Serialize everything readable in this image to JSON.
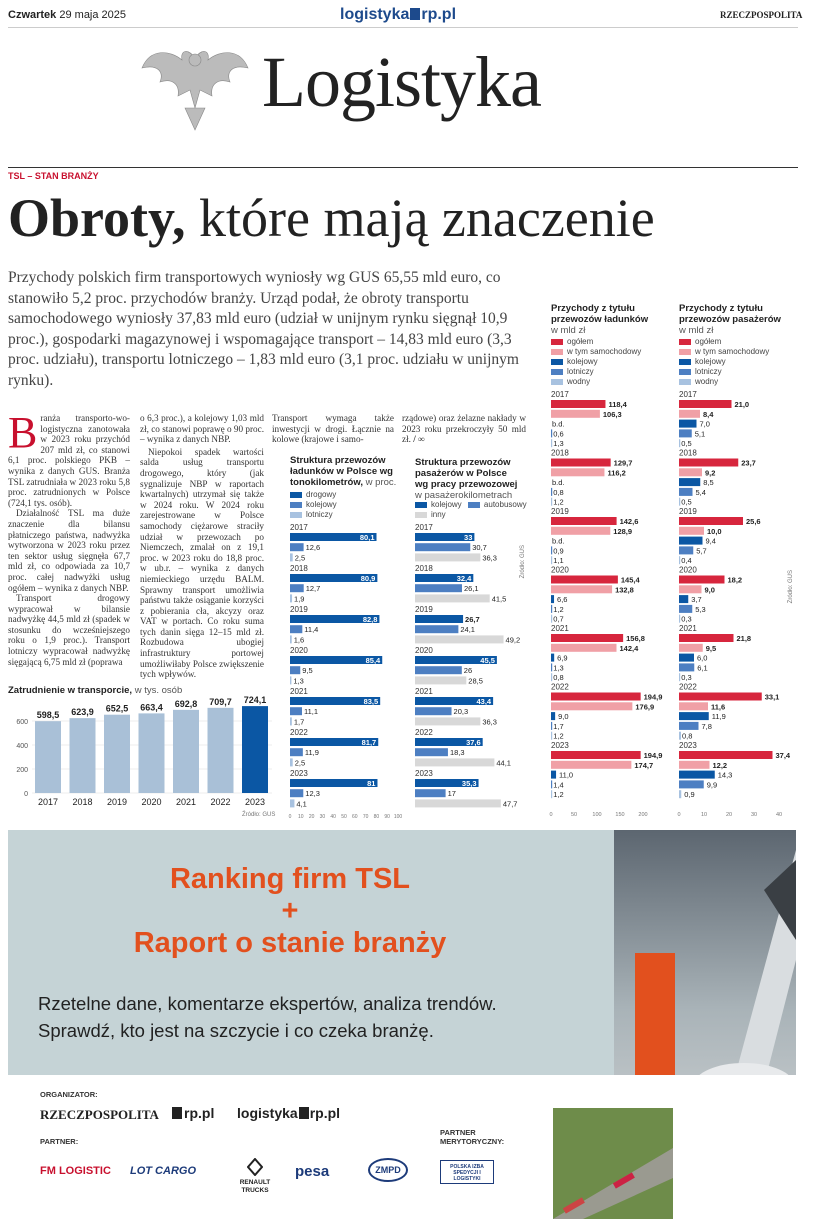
{
  "topbar": {
    "day": "Czwartek",
    "date": "29 maja 2025",
    "site": "logistyka",
    "site_rp": "rp.pl",
    "brand": "RZECZPOSPOLITA"
  },
  "masthead": "Logistyka",
  "section": "TSL – STAN BRANŻY",
  "headline": {
    "bold": "Obroty,",
    "rest": " które mają znaczenie"
  },
  "lead": "Przychody polskich firm transportowych wyniosły wg GUS 65,55 mld euro, co stanowiło 5,2 proc. przychodów branży. Urząd podał, że obroty transportu samochodowego wyniosły 37,83 mld euro (udział w unijnym rynku sięgnął 10,9 proc.), gospodarki magazynowej i wspomagające transport – 14,83 mld euro (3,3 proc. udziału), transportu lotniczego – 1,83 mld euro (3,1 proc. udziału w unijnym rynku).",
  "body": {
    "dropcap": "B",
    "col1": "ranża transporto-wo-logistyczna zanotowała w 2023 roku przychód 207 mld zł, co stanowi 6,1 proc. polskiego PKB – wynika z danych GUS. Branża TSL zatrudniała w 2023 roku 5,8 proc. zatrudnionych w Polsce (724,1 tys. osób).",
    "col1b": "Działalność TSL ma duże znaczenie dla bilansu płatniczego państwa, nadwyżka wytworzona w 2023 roku przez ten sektor usług sięgnęła 67,7 mld zł, co odpowiada za 10,7 proc. całej nadwyżki usług ogółem – wynika z danych NBP.",
    "col1c": "Transport drogowy wypracował w bilansie nadwyżkę 44,5 mld zł (spadek w stosunku do wcześniejszego roku o 1,9 proc.). Transport lotniczy wypracował nadwyżkę sięgającą 6,75 mld zł (poprawa",
    "col2": "o 6,3 proc.), a kolejowy 1,03 mld zł, co stanowi poprawę o 90 proc. – wynika z danych NBP.",
    "col2b": "Niepokoi spadek wartości salda usług transportu drogowego, który (jak sygnalizuje NBP w raportach kwartalnych) utrzymał się także w 2024 roku. W 2024 roku zarejestrowane w Polsce samochody ciężarowe straciły udział w przewozach po Niemczech, zmalał on z 19,1 proc. w 2023 roku do 18,8 proc. w ub.r. – wynika z danych niemieckiego urzędu BALM. Sprawny transport umożliwia państwu także osiąganie korzyści z pobierania cła, akcyzy oraz VAT w portach. Co roku suma tych danin sięga 12–15 mld zł. Rozbudowa ubogiej infrastruktury portowej umożliwiłaby Polsce zwiększenie tych wpływów.",
    "col3": "Transport wymaga także inwestycji w drogi. Łącznie na kolowe (krajowe i samo-",
    "col4": "rządowe) oraz żelazne nakłady w 2023 roku przekroczyły 50 mld zł.",
    "sign": "/ ∞"
  },
  "emp_chart": {
    "title": "Zatrudnienie w transporcie,",
    "unit": "w tys. osób",
    "source": "Źródło: GUS",
    "yticks": [
      "0",
      "200",
      "400",
      "600"
    ]
  },
  "freight_chart": {
    "title": "Struktura przewozów ładunków w Polsce wg tonokilometrów,",
    "unit": "w proc.",
    "legend": [
      "drogowy",
      "kolejowy",
      "lotniczy"
    ],
    "xticks": [
      "0",
      "10",
      "20",
      "30",
      "40",
      "50",
      "60",
      "70",
      "80",
      "90",
      "100"
    ]
  },
  "pass_chart": {
    "title": "Struktura przewozów pasażerów w Polsce wg pracy przewozowej",
    "unit": "w pasażerokilometrach",
    "legend": [
      "kolejowy",
      "autobusowy",
      "inny"
    ],
    "source": "Źródło: GUS"
  },
  "rev_freight_chart": {
    "title": "Przychody z tytułu przewozów ładunków",
    "unit": "w mld zł",
    "legend": [
      "ogółem",
      "w tym samochodowy",
      "kolejowy",
      "lotniczy",
      "wodny"
    ],
    "xticks": [
      "0",
      "50",
      "100",
      "150",
      "200"
    ],
    "source": "Źródło: GUS"
  },
  "rev_pass_chart": {
    "title": "Przychody z tytułu przewozów pasażerów",
    "unit": "w mld zł",
    "legend": [
      "ogółem",
      "w tym samochodowy",
      "kolejowy",
      "lotniczy",
      "wodny"
    ],
    "xticks": [
      "0",
      "10",
      "20",
      "30",
      "40"
    ]
  },
  "colors": {
    "red": "#d7263d",
    "pink": "#f0a0a6",
    "navy": "#0b57a4",
    "blue": "#4d7fc2",
    "light": "#a8c2e0",
    "grey": "#c8c8c8",
    "lightgrey": "#d8d8d8",
    "bar": "#a9c0d7",
    "bar_last": "#0b57a4"
  },
  "chart_data": [
    {
      "type": "bar",
      "title": "Zatrudnienie w transporcie",
      "ylabel": "w tys. osób",
      "categories": [
        "2017",
        "2018",
        "2019",
        "2020",
        "2021",
        "2022",
        "2023"
      ],
      "values": [
        598.5,
        623.9,
        652.5,
        663.4,
        692.8,
        709.7,
        724.1
      ],
      "value_labels": [
        "598,5",
        "623,9",
        "652,5",
        "663,4",
        "692,8",
        "709,7",
        "724,1"
      ],
      "ylim": [
        0,
        750
      ]
    },
    {
      "type": "bar",
      "orientation": "horizontal",
      "title": "Struktura przewozów ładunków w Polsce wg tonokilometrów",
      "unit": "w proc.",
      "categories": [
        "2017",
        "2018",
        "2019",
        "2020",
        "2021",
        "2022",
        "2023"
      ],
      "series": [
        {
          "name": "drogowy",
          "values": [
            80.1,
            80.9,
            82.8,
            85.4,
            83.5,
            81.7,
            81
          ],
          "labels": [
            "80,1",
            "80,9",
            "82,8",
            "85,4",
            "83,5",
            "81,7",
            "81"
          ]
        },
        {
          "name": "kolejowy",
          "values": [
            12.6,
            12.7,
            11.4,
            9.5,
            11.1,
            11.9,
            12.3
          ],
          "labels": [
            "12,6",
            "12,7",
            "11,4",
            "9,5",
            "11,1",
            "11,9",
            "12,3"
          ]
        },
        {
          "name": "lotniczy",
          "values": [
            2.5,
            1.9,
            1.6,
            1.3,
            1.7,
            2.5,
            4.1
          ],
          "labels": [
            "2,5",
            "1,9",
            "1,6",
            "1,3",
            "1,7",
            "2,5",
            "4,1"
          ]
        }
      ],
      "xlim": [
        0,
        100
      ]
    },
    {
      "type": "bar",
      "orientation": "horizontal",
      "title": "Struktura przewozów pasażerów w Polsce wg pracy przewozowej",
      "unit": "w pasażerokilometrach",
      "categories": [
        "2017",
        "2018",
        "2019",
        "2020",
        "2021",
        "2022",
        "2023"
      ],
      "series": [
        {
          "name": "kolejowy",
          "values": [
            33,
            32.4,
            26.7,
            45.5,
            43.4,
            37.6,
            35.3
          ],
          "labels": [
            "33",
            "32,4",
            "26,7",
            "45,5",
            "43,4",
            "37,6",
            "35,3"
          ]
        },
        {
          "name": "autobusowy",
          "values": [
            30.7,
            26.1,
            24.1,
            26,
            20.3,
            18.3,
            17
          ],
          "labels": [
            "30,7",
            "26,1",
            "24,1",
            "26",
            "20,3",
            "18,3",
            "17"
          ]
        },
        {
          "name": "inny",
          "values": [
            36.3,
            41.5,
            49.2,
            28.5,
            36.3,
            44.1,
            47.7
          ],
          "labels": [
            "36,3",
            "41,5",
            "49,2",
            "28,5",
            "36,3",
            "44,1",
            "47,7"
          ]
        }
      ],
      "xlim": [
        0,
        50
      ]
    },
    {
      "type": "bar",
      "orientation": "horizontal",
      "title": "Przychody z tytułu przewozów ładunków",
      "unit": "w mld zł",
      "categories": [
        "2017",
        "2018",
        "2019",
        "2020",
        "2021",
        "2022",
        "2023"
      ],
      "series": [
        {
          "name": "ogółem",
          "values": [
            118.4,
            129.7,
            142.6,
            145.4,
            156.8,
            194.9,
            194.9
          ],
          "labels": [
            "118,4",
            "129,7",
            "142,6",
            "145,4",
            "156,8",
            "194,9",
            "194,9"
          ]
        },
        {
          "name": "w tym samochodowy",
          "values": [
            106.3,
            116.2,
            128.9,
            132.8,
            142.4,
            176.9,
            174.7
          ],
          "labels": [
            "106,3",
            "116,2",
            "128,9",
            "132,8",
            "142,4",
            "176,9",
            "174,7"
          ]
        },
        {
          "name": "kolejowy",
          "values": [
            null,
            null,
            null,
            6.6,
            6.9,
            9.0,
            11.0
          ],
          "labels": [
            "b.d.",
            "b.d.",
            "b.d.",
            "6,6",
            "6,9",
            "9,0",
            "11,0"
          ]
        },
        {
          "name": "lotniczy",
          "values": [
            0.6,
            0.8,
            0.9,
            1.2,
            1.3,
            1.7,
            1.4
          ],
          "labels": [
            "0,6",
            "0,8",
            "0,9",
            "1,2",
            "1,3",
            "1,7",
            "1,4"
          ]
        },
        {
          "name": "wodny",
          "values": [
            1.3,
            1.2,
            1.1,
            0.7,
            0.8,
            1.2,
            1.2
          ],
          "labels": [
            "1,3",
            "1,2",
            "1,1",
            "0,7",
            "0,8",
            "1,2",
            "1,2"
          ]
        }
      ],
      "xlim": [
        0,
        200
      ]
    },
    {
      "type": "bar",
      "orientation": "horizontal",
      "title": "Przychody z tytułu przewozów pasażerów",
      "unit": "w mld zł",
      "categories": [
        "2017",
        "2018",
        "2019",
        "2020",
        "2021",
        "2022",
        "2023"
      ],
      "series": [
        {
          "name": "ogółem",
          "values": [
            21.0,
            23.7,
            25.6,
            18.2,
            21.8,
            33.1,
            37.4
          ],
          "labels": [
            "21,0",
            "23,7",
            "25,6",
            "18,2",
            "21,8",
            "33,1",
            "37,4"
          ]
        },
        {
          "name": "w tym samochodowy",
          "values": [
            8.4,
            9.2,
            10.0,
            9.0,
            9.5,
            11.6,
            12.2
          ],
          "labels": [
            "8,4",
            "9,2",
            "10,0",
            "9,0",
            "9,5",
            "11,6",
            "12,2"
          ]
        },
        {
          "name": "kolejowy",
          "values": [
            7.0,
            8.5,
            9.4,
            3.7,
            6.0,
            11.9,
            14.3
          ],
          "labels": [
            "7,0",
            "8,5",
            "9,4",
            "3,7",
            "6,0",
            "11,9",
            "14,3"
          ]
        },
        {
          "name": "lotniczy",
          "values": [
            5.1,
            5.4,
            5.7,
            5.3,
            6.1,
            7.8,
            9.9
          ],
          "labels": [
            "5,1",
            "5,4",
            "5,7",
            "5,3",
            "6,1",
            "7,8",
            "9,9"
          ]
        },
        {
          "name": "wodny",
          "values": [
            0.5,
            0.5,
            0.4,
            0.3,
            0.3,
            0.8,
            0.9
          ],
          "labels": [
            "0,5",
            "0,5",
            "0,4",
            "0,3",
            "0,3",
            "0,8",
            "0,9"
          ]
        }
      ],
      "xlim": [
        0,
        40
      ]
    }
  ],
  "banner": {
    "line1": "Ranking firm TSL",
    "plus": "+",
    "line2": "Raport o stanie branży",
    "sub1": "Rzetelne dane, komentarze ekspertów, analiza trendów.",
    "sub2": "Sprawdź, kto jest na szczycie i co czeka branżę."
  },
  "footer": {
    "organizer_label": "ORGANIZATOR:",
    "partner_label": "PARTNER:",
    "partner_merit_label": "PARTNER MERYTORYCZNY:",
    "org_logos": [
      "RZECZPOSPOLITA",
      "rp.pl",
      "logistyka"
    ],
    "partners": [
      "FM LOGISTIC",
      "LOT CARGO",
      "RENAULT TRUCKS",
      "pesa",
      "ZMPD"
    ],
    "merit": "POLSKA IZBA SPEDYCJI I LOGISTYKI"
  }
}
